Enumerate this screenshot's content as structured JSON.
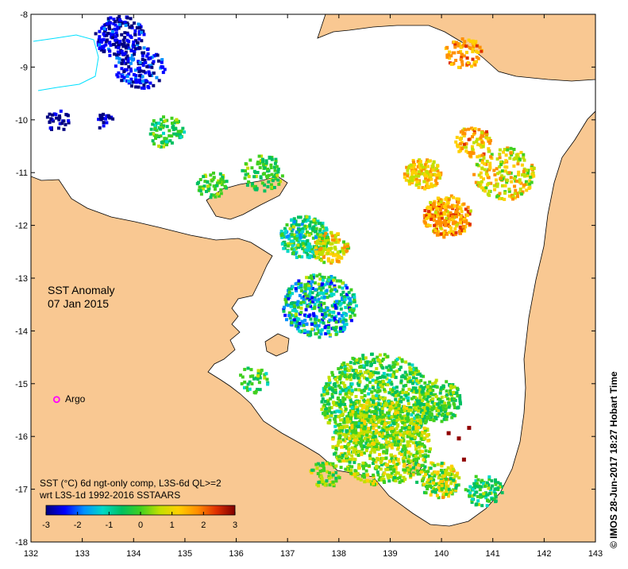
{
  "map": {
    "title": "SST Anomaly",
    "date": "07 Jan 2015",
    "legend_marker_label": "Argo",
    "caption_line1": "SST (°C) 6d ngt-only comp, L3S-6d QL>=2",
    "caption_line2": "wrt L3S-1d 1992-2016 SSTAARS",
    "credit": "© IMOS 28-Jun-2017 18:27 Hobart Time",
    "colors": {
      "land": "#f9c892",
      "water": "#ffffff",
      "argo": "#ff00ff"
    }
  },
  "chart_data": {
    "type": "heatmap",
    "x_ticks": [
      "132",
      "133",
      "134",
      "135",
      "136",
      "137",
      "138",
      "139",
      "140",
      "141",
      "142",
      "143"
    ],
    "y_ticks": [
      "-8",
      "-9",
      "-10",
      "-11",
      "-12",
      "-13",
      "-14",
      "-15",
      "-16",
      "-17",
      "-18"
    ],
    "xlim": [
      132,
      143
    ],
    "ylim": [
      -18,
      -8
    ],
    "colorbar": {
      "ticks": [
        "-3",
        "-2",
        "-1",
        "0",
        "1",
        "2",
        "3"
      ],
      "range": [
        -3,
        3
      ],
      "colors": [
        "#00007f",
        "#0000ff",
        "#0090ff",
        "#00d8c8",
        "#00c060",
        "#40d020",
        "#c0e000",
        "#ffd000",
        "#ff9000",
        "#e03000",
        "#800000"
      ]
    },
    "argo_float": {
      "lon": 132.5,
      "lat": -15.3
    }
  }
}
